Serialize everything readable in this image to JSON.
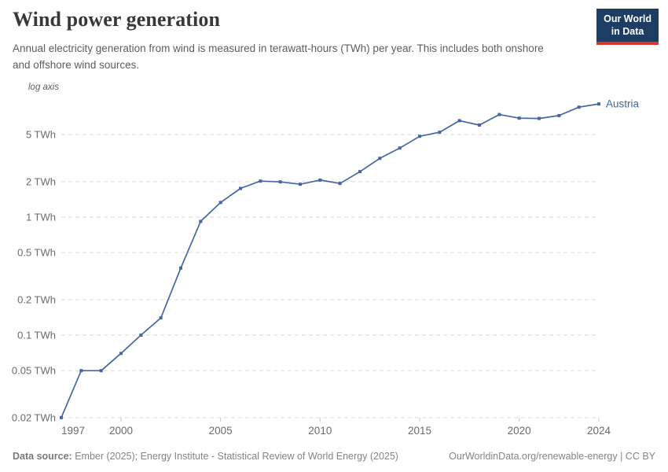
{
  "header": {
    "title": "Wind power generation",
    "subtitle": "Annual electricity generation from wind is measured in terawatt-hours (TWh) per year. This includes both onshore and offshore wind sources.",
    "logo": {
      "line1": "Our World",
      "line2": "in Data"
    }
  },
  "chart_data": {
    "type": "line",
    "title": "Wind power generation",
    "scale_note": "log axis",
    "yscale": "log",
    "grid": true,
    "xlim": [
      1997,
      2024
    ],
    "ylim": [
      0.02,
      9.5
    ],
    "x": [
      1997,
      1998,
      1999,
      2000,
      2001,
      2002,
      2003,
      2004,
      2005,
      2006,
      2007,
      2008,
      2009,
      2010,
      2011,
      2012,
      2013,
      2014,
      2015,
      2016,
      2017,
      2018,
      2019,
      2020,
      2021,
      2022,
      2023,
      2024
    ],
    "series": [
      {
        "name": "Austria",
        "values": [
          0.02,
          0.05,
          0.05,
          0.07,
          0.1,
          0.14,
          0.37,
          0.92,
          1.33,
          1.75,
          2.02,
          1.99,
          1.9,
          2.06,
          1.93,
          2.43,
          3.15,
          3.85,
          4.84,
          5.24,
          6.57,
          6.03,
          7.4,
          6.9,
          6.86,
          7.25,
          8.55,
          9.1
        ]
      }
    ],
    "x_axis": {
      "ticks": [
        1997,
        2000,
        2005,
        2010,
        2015,
        2020,
        2024
      ]
    },
    "y_axis": {
      "unit": "TWh",
      "ticks": [
        {
          "value": 5,
          "label": "5 TWh"
        },
        {
          "value": 2,
          "label": "2 TWh"
        },
        {
          "value": 1,
          "label": "1 TWh"
        },
        {
          "value": 0.5,
          "label": "0.5 TWh"
        },
        {
          "value": 0.2,
          "label": "0.2 TWh"
        },
        {
          "value": 0.1,
          "label": "0.1 TWh"
        },
        {
          "value": 0.05,
          "label": "0.05 TWh"
        },
        {
          "value": 0.02,
          "label": "0.02 TWh"
        }
      ]
    },
    "end_label": "Austria",
    "colors": {
      "line": "#4565a5",
      "grid": "#d9d9d9",
      "tick_mark": "#c8c8c8",
      "tick_label": "#6b6b6b",
      "note": "#5e5e5e"
    },
    "legend_position": "end-of-line"
  },
  "footer": {
    "datasource_label": "Data source:",
    "datasource_text": " Ember (2025); Energy Institute - Statistical Review of World Energy (2025)",
    "link": "OurWorldinData.org/renewable-energy | CC BY"
  },
  "brand_colors": {
    "navy": "#1d3d63",
    "red": "#dc352c"
  }
}
